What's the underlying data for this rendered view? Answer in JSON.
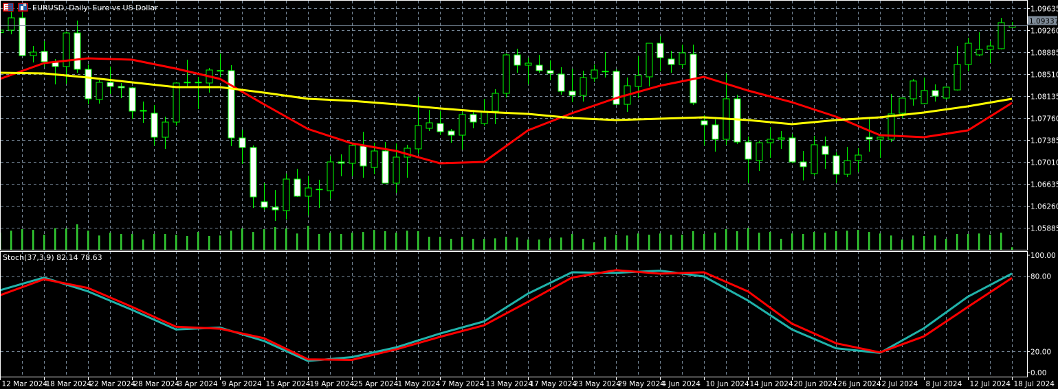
{
  "window": {
    "title": "EURUSD, Daily:  Euro vs US Dollar",
    "icons": [
      "chart-window-icon",
      "save-template-icon"
    ]
  },
  "colors": {
    "background": "#000000",
    "grid": "#778899",
    "axis": "#ffffff",
    "candle_outline": "#00ff00",
    "bull_body": "#000000",
    "bear_body": "#ffffff",
    "volume": "#32cd32",
    "ma_red": "#ff0000",
    "ma_yellow": "#ffff00",
    "stoch_main": "#20b2aa",
    "stoch_signal": "#ff0000",
    "current_price_bg": "#7f8c99"
  },
  "stochastic": {
    "legend": "Stoch(37,3,9) 82.14 78.63",
    "axis_labels": [
      "100.00",
      "80.00",
      "20.00",
      "0.00"
    ],
    "levels": [
      80,
      20
    ]
  },
  "chart_data": {
    "type": "candlestick",
    "symbol": "EURUSD",
    "timeframe": "Daily",
    "current_price": "1.09337",
    "ylim": [
      1.0551,
      1.0978
    ],
    "y_tick_labels": [
      "1.09635",
      "1.09260",
      "1.08885",
      "1.08510",
      "1.08135",
      "1.07760",
      "1.07385",
      "1.07010",
      "1.06635",
      "1.06260",
      "1.05885"
    ],
    "x_tick_labels": [
      "12 Mar 2024",
      "18 Mar 2024",
      "22 Mar 2024",
      "28 Mar 2024",
      "3 Apr 2024",
      "9 Apr 2024",
      "15 Apr 2024",
      "19 Apr 2024",
      "25 Apr 2024",
      "1 May 2024",
      "7 May 2024",
      "13 May 2024",
      "17 May 2024",
      "23 May 2024",
      "29 May 2024",
      "4 Jun 2024",
      "10 Jun 2024",
      "14 Jun 2024",
      "20 Jun 2024",
      "26 Jun 2024",
      "2 Jul 2024",
      "8 Jul 2024",
      "12 Jul 2024",
      "18 Jul 2024"
    ],
    "grid": true,
    "dates": [
      "2024-03-12",
      "2024-03-13",
      "2024-03-14",
      "2024-03-15",
      "2024-03-18",
      "2024-03-19",
      "2024-03-20",
      "2024-03-21",
      "2024-03-22",
      "2024-03-25",
      "2024-03-26",
      "2024-03-27",
      "2024-03-28",
      "2024-03-29",
      "2024-04-01",
      "2024-04-02",
      "2024-04-03",
      "2024-04-04",
      "2024-04-05",
      "2024-04-08",
      "2024-04-09",
      "2024-04-10",
      "2024-04-11",
      "2024-04-12",
      "2024-04-15",
      "2024-04-16",
      "2024-04-17",
      "2024-04-18",
      "2024-04-19",
      "2024-04-22",
      "2024-04-23",
      "2024-04-24",
      "2024-04-25",
      "2024-04-26",
      "2024-04-29",
      "2024-04-30",
      "2024-05-01",
      "2024-05-02",
      "2024-05-03",
      "2024-05-06",
      "2024-05-07",
      "2024-05-08",
      "2024-05-09",
      "2024-05-10",
      "2024-05-13",
      "2024-05-14",
      "2024-05-15",
      "2024-05-16",
      "2024-05-17",
      "2024-05-20",
      "2024-05-21",
      "2024-05-22",
      "2024-05-23",
      "2024-05-24",
      "2024-05-27",
      "2024-05-28",
      "2024-05-29",
      "2024-05-30",
      "2024-05-31",
      "2024-06-03",
      "2024-06-04",
      "2024-06-05",
      "2024-06-06",
      "2024-06-07",
      "2024-06-10",
      "2024-06-11",
      "2024-06-12",
      "2024-06-13",
      "2024-06-14",
      "2024-06-17",
      "2024-06-18",
      "2024-06-19",
      "2024-06-20",
      "2024-06-21",
      "2024-06-24",
      "2024-06-25",
      "2024-06-26",
      "2024-06-27",
      "2024-06-28",
      "2024-07-01",
      "2024-07-02",
      "2024-07-03",
      "2024-07-04",
      "2024-07-05",
      "2024-07-08",
      "2024-07-09",
      "2024-07-10",
      "2024-07-11",
      "2024-07-12",
      "2024-07-15",
      "2024-07-16",
      "2024-07-17",
      "2024-07-18"
    ],
    "ohlc": [
      [
        1.0922,
        1.0935,
        1.0915,
        1.0926
      ],
      [
        1.0926,
        1.09576,
        1.0919,
        1.09471
      ],
      [
        1.09471,
        1.09565,
        1.08815,
        1.08826
      ],
      [
        1.08826,
        1.0899,
        1.08709,
        1.08885
      ],
      [
        1.08897,
        1.09072,
        1.08639,
        1.08721
      ],
      [
        1.08709,
        1.08768,
        1.08334,
        1.08639
      ],
      [
        1.08639,
        1.09237,
        1.08346,
        1.09213
      ],
      [
        1.09213,
        1.09424,
        1.08533,
        1.08592
      ],
      [
        1.08592,
        1.08674,
        1.07994,
        1.08088
      ],
      [
        1.08076,
        1.08405,
        1.08006,
        1.08369
      ],
      [
        1.08369,
        1.08639,
        1.0817,
        1.08299
      ],
      [
        1.08299,
        1.08358,
        1.081,
        1.08276
      ],
      [
        1.08276,
        1.08288,
        1.07748,
        1.07877
      ],
      [
        1.07889,
        1.08041,
        1.07678,
        1.0788
      ],
      [
        1.07842,
        1.07983,
        1.07291,
        1.07432
      ],
      [
        1.07432,
        1.07783,
        1.07233,
        1.0769
      ],
      [
        1.0769,
        1.08369,
        1.07631,
        1.08358
      ],
      [
        1.08362,
        1.08756,
        1.08299,
        1.08372
      ],
      [
        1.08372,
        1.08463,
        1.07912,
        1.08365
      ],
      [
        1.08358,
        1.08615,
        1.08194,
        1.0858
      ],
      [
        1.08569,
        1.08862,
        1.08463,
        1.08572
      ],
      [
        1.08569,
        1.08662,
        1.07279,
        1.0742
      ],
      [
        1.0742,
        1.07561,
        1.06975,
        1.07256
      ],
      [
        1.07256,
        1.07291,
        1.06225,
        1.06412
      ],
      [
        1.0633,
        1.06647,
        1.0619,
        1.06236
      ],
      [
        1.06236,
        1.06529,
        1.06002,
        1.0619
      ],
      [
        1.06178,
        1.06811,
        1.06026,
        1.06717
      ],
      [
        1.06717,
        1.06893,
        1.06412,
        1.06424
      ],
      [
        1.06424,
        1.06776,
        1.06096,
        1.06565
      ],
      [
        1.06545,
        1.06705,
        1.06225,
        1.0654
      ],
      [
        1.06518,
        1.07115,
        1.06377,
        1.0701
      ],
      [
        1.0701,
        1.07139,
        1.06764,
        1.06987
      ],
      [
        1.06987,
        1.07326,
        1.06764,
        1.07291
      ],
      [
        1.07279,
        1.07526,
        1.0674,
        1.0694
      ],
      [
        1.06916,
        1.07338,
        1.06799,
        1.07197
      ],
      [
        1.07197,
        1.0735,
        1.06647,
        1.06647
      ],
      [
        1.06647,
        1.07326,
        1.06483,
        1.07092
      ],
      [
        1.07092,
        1.07303,
        1.0674,
        1.07244
      ],
      [
        1.07233,
        1.08123,
        1.07151,
        1.07631
      ],
      [
        1.07584,
        1.07901,
        1.07537,
        1.07678
      ],
      [
        1.07666,
        1.07877,
        1.07467,
        1.07526
      ],
      [
        1.07537,
        1.07572,
        1.07338,
        1.07467
      ],
      [
        1.07467,
        1.07865,
        1.07221,
        1.07819
      ],
      [
        1.07819,
        1.07901,
        1.07584,
        1.0769
      ],
      [
        1.07666,
        1.08088,
        1.07631,
        1.07877
      ],
      [
        1.07877,
        1.08252,
        1.07655,
        1.08182
      ],
      [
        1.08182,
        1.08862,
        1.08112,
        1.08838
      ],
      [
        1.08838,
        1.08944,
        1.08533,
        1.08662
      ],
      [
        1.08662,
        1.08791,
        1.08334,
        1.08697
      ],
      [
        1.08662,
        1.08838,
        1.08533,
        1.08569
      ],
      [
        1.08569,
        1.08744,
        1.08405,
        1.08522
      ],
      [
        1.0851,
        1.08627,
        1.08158,
        1.08217
      ],
      [
        1.08217,
        1.08604,
        1.0803,
        1.08147
      ],
      [
        1.08147,
        1.08569,
        1.08041,
        1.08451
      ],
      [
        1.0844,
        1.08674,
        1.08381,
        1.0858
      ],
      [
        1.08552,
        1.08885,
        1.08451,
        1.0856
      ],
      [
        1.08557,
        1.08592,
        1.07983,
        1.07994
      ],
      [
        1.07994,
        1.08451,
        1.07865,
        1.08311
      ],
      [
        1.08299,
        1.08815,
        1.081,
        1.08487
      ],
      [
        1.08463,
        1.09037,
        1.08299,
        1.09037
      ],
      [
        1.09037,
        1.09155,
        1.08557,
        1.08791
      ],
      [
        1.08768,
        1.08908,
        1.08533,
        1.08674
      ],
      [
        1.08674,
        1.09014,
        1.08615,
        1.08873
      ],
      [
        1.0885,
        1.09014,
        1.07983,
        1.08018
      ],
      [
        1.07713,
        1.07807,
        1.07291,
        1.07643
      ],
      [
        1.07643,
        1.07737,
        1.07186,
        1.07397
      ],
      [
        1.07397,
        1.08522,
        1.07303,
        1.08088
      ],
      [
        1.08088,
        1.08158,
        1.07315,
        1.0735
      ],
      [
        1.0735,
        1.07444,
        1.06647,
        1.07057
      ],
      [
        1.07033,
        1.07373,
        1.06858,
        1.07338
      ],
      [
        1.07338,
        1.07608,
        1.0708,
        1.07397
      ],
      [
        1.07397,
        1.07537,
        1.07233,
        1.0742
      ],
      [
        1.0742,
        1.0749,
        1.06987,
        1.0701
      ],
      [
        1.0701,
        1.07197,
        1.06694,
        1.06928
      ],
      [
        1.06811,
        1.07455,
        1.06776,
        1.07303
      ],
      [
        1.07279,
        1.07444,
        1.06893,
        1.07139
      ],
      [
        1.07115,
        1.07174,
        1.06647,
        1.06799
      ],
      [
        1.06799,
        1.07268,
        1.06752,
        1.07033
      ],
      [
        1.07033,
        1.07244,
        1.06834,
        1.07127
      ],
      [
        1.07432,
        1.07748,
        1.07186,
        1.07397
      ],
      [
        1.07397,
        1.07437,
        1.0708,
        1.07432
      ],
      [
        1.07397,
        1.0817,
        1.0735,
        1.0783
      ],
      [
        1.07842,
        1.08112,
        1.0776,
        1.081
      ],
      [
        1.08088,
        1.08428,
        1.07971,
        1.08393
      ],
      [
        1.08006,
        1.08451,
        1.07994,
        1.08229
      ],
      [
        1.08229,
        1.08334,
        1.08041,
        1.08135
      ],
      [
        1.081,
        1.08299,
        1.08076,
        1.08287
      ],
      [
        1.0824,
        1.0899,
        1.0823,
        1.08674
      ],
      [
        1.08674,
        1.09131,
        1.08557,
        1.09037
      ],
      [
        1.08838,
        1.09225,
        1.08815,
        1.08932
      ],
      [
        1.08932,
        1.09072,
        1.08697,
        1.0899
      ],
      [
        1.08944,
        1.09471,
        1.08932,
        1.09389
      ],
      [
        1.0931,
        1.09401,
        1.093,
        1.09337
      ]
    ],
    "volume_relative": [
      68,
      75,
      81,
      78,
      59,
      85,
      84,
      100,
      75,
      56,
      67,
      62,
      62,
      40,
      62,
      62,
      59,
      54,
      70,
      54,
      56,
      75,
      84,
      70,
      81,
      89,
      84,
      64,
      94,
      62,
      67,
      62,
      67,
      70,
      78,
      73,
      67,
      75,
      73,
      51,
      51,
      43,
      51,
      43,
      43,
      45,
      51,
      48,
      40,
      40,
      45,
      48,
      62,
      43,
      29,
      51,
      59,
      56,
      64,
      59,
      64,
      59,
      59,
      73,
      62,
      67,
      81,
      73,
      86,
      67,
      70,
      43,
      64,
      62,
      70,
      67,
      73,
      75,
      78,
      70,
      64,
      56,
      40,
      56,
      54,
      56,
      43,
      62,
      62,
      64,
      59,
      67,
      10
    ],
    "series": [
      {
        "color_key": "ma_red",
        "x": [
          "2024-03-12",
          "2024-03-18",
          "2024-03-22",
          "2024-03-28",
          "2024-04-03",
          "2024-04-09",
          "2024-04-15",
          "2024-04-19",
          "2024-04-25",
          "2024-05-01",
          "2024-05-07",
          "2024-05-13",
          "2024-05-17",
          "2024-05-23",
          "2024-05-29",
          "2024-06-04",
          "2024-06-10",
          "2024-06-14",
          "2024-06-20",
          "2024-06-26",
          "2024-07-02",
          "2024-07-08",
          "2024-07-12",
          "2024-07-18"
        ],
        "values": [
          1.08428,
          1.08697,
          1.0878,
          1.08756,
          1.08604,
          1.08428,
          1.07994,
          1.07572,
          1.07326,
          1.07197,
          1.06987,
          1.0701,
          1.07549,
          1.07842,
          1.081,
          1.08311,
          1.08463,
          1.08229,
          1.0803,
          1.07783,
          1.07467,
          1.07432,
          1.07549,
          1.08018
        ]
      },
      {
        "color_key": "ma_yellow",
        "x": [
          "2024-03-12",
          "2024-03-18",
          "2024-03-22",
          "2024-03-28",
          "2024-04-03",
          "2024-04-09",
          "2024-04-15",
          "2024-04-19",
          "2024-04-25",
          "2024-05-01",
          "2024-05-07",
          "2024-05-13",
          "2024-05-17",
          "2024-05-23",
          "2024-05-29",
          "2024-06-04",
          "2024-06-10",
          "2024-06-14",
          "2024-06-20",
          "2024-06-26",
          "2024-07-02",
          "2024-07-08",
          "2024-07-12",
          "2024-07-18"
        ],
        "values": [
          1.08533,
          1.08522,
          1.08451,
          1.08369,
          1.08287,
          1.08287,
          1.08194,
          1.08088,
          1.08053,
          1.07994,
          1.07924,
          1.07865,
          1.0783,
          1.0776,
          1.07725,
          1.07748,
          1.07772,
          1.07725,
          1.07655,
          1.07725,
          1.07772,
          1.07854,
          1.07959,
          1.08088
        ]
      }
    ],
    "stoch_series": [
      {
        "color_key": "stoch_main",
        "x": [
          "2024-03-12",
          "2024-03-18",
          "2024-03-22",
          "2024-03-28",
          "2024-04-03",
          "2024-04-09",
          "2024-04-15",
          "2024-04-19",
          "2024-04-25",
          "2024-05-01",
          "2024-05-07",
          "2024-05-13",
          "2024-05-17",
          "2024-05-23",
          "2024-05-29",
          "2024-06-04",
          "2024-06-10",
          "2024-06-14",
          "2024-06-20",
          "2024-06-26",
          "2024-07-02",
          "2024-07-08",
          "2024-07-12",
          "2024-07-18"
        ],
        "values": [
          68.8,
          78.9,
          67.9,
          53.2,
          37.6,
          39.1,
          28.4,
          12.5,
          15.6,
          23.3,
          34.3,
          44.0,
          66.1,
          83.1,
          82.6,
          84.4,
          79.8,
          60.6,
          37.6,
          22.6,
          18.9,
          38.5,
          63.7,
          82.14
        ]
      },
      {
        "color_key": "stoch_signal",
        "x": [
          "2024-03-12",
          "2024-03-18",
          "2024-03-22",
          "2024-03-28",
          "2024-04-03",
          "2024-04-09",
          "2024-04-15",
          "2024-04-19",
          "2024-04-25",
          "2024-05-01",
          "2024-05-07",
          "2024-05-13",
          "2024-05-17",
          "2024-05-23",
          "2024-05-29",
          "2024-06-04",
          "2024-06-10",
          "2024-06-14",
          "2024-06-20",
          "2024-06-26",
          "2024-07-02",
          "2024-07-08",
          "2024-07-12",
          "2024-07-18"
        ],
        "values": [
          64.8,
          77.6,
          70.6,
          55.6,
          39.8,
          38.2,
          30.6,
          13.8,
          13.4,
          21.7,
          31.7,
          40.9,
          59.6,
          78.9,
          84.8,
          82.0,
          83.1,
          67.9,
          42.2,
          26.6,
          19.3,
          32.1,
          55.6,
          78.63
        ]
      }
    ]
  }
}
